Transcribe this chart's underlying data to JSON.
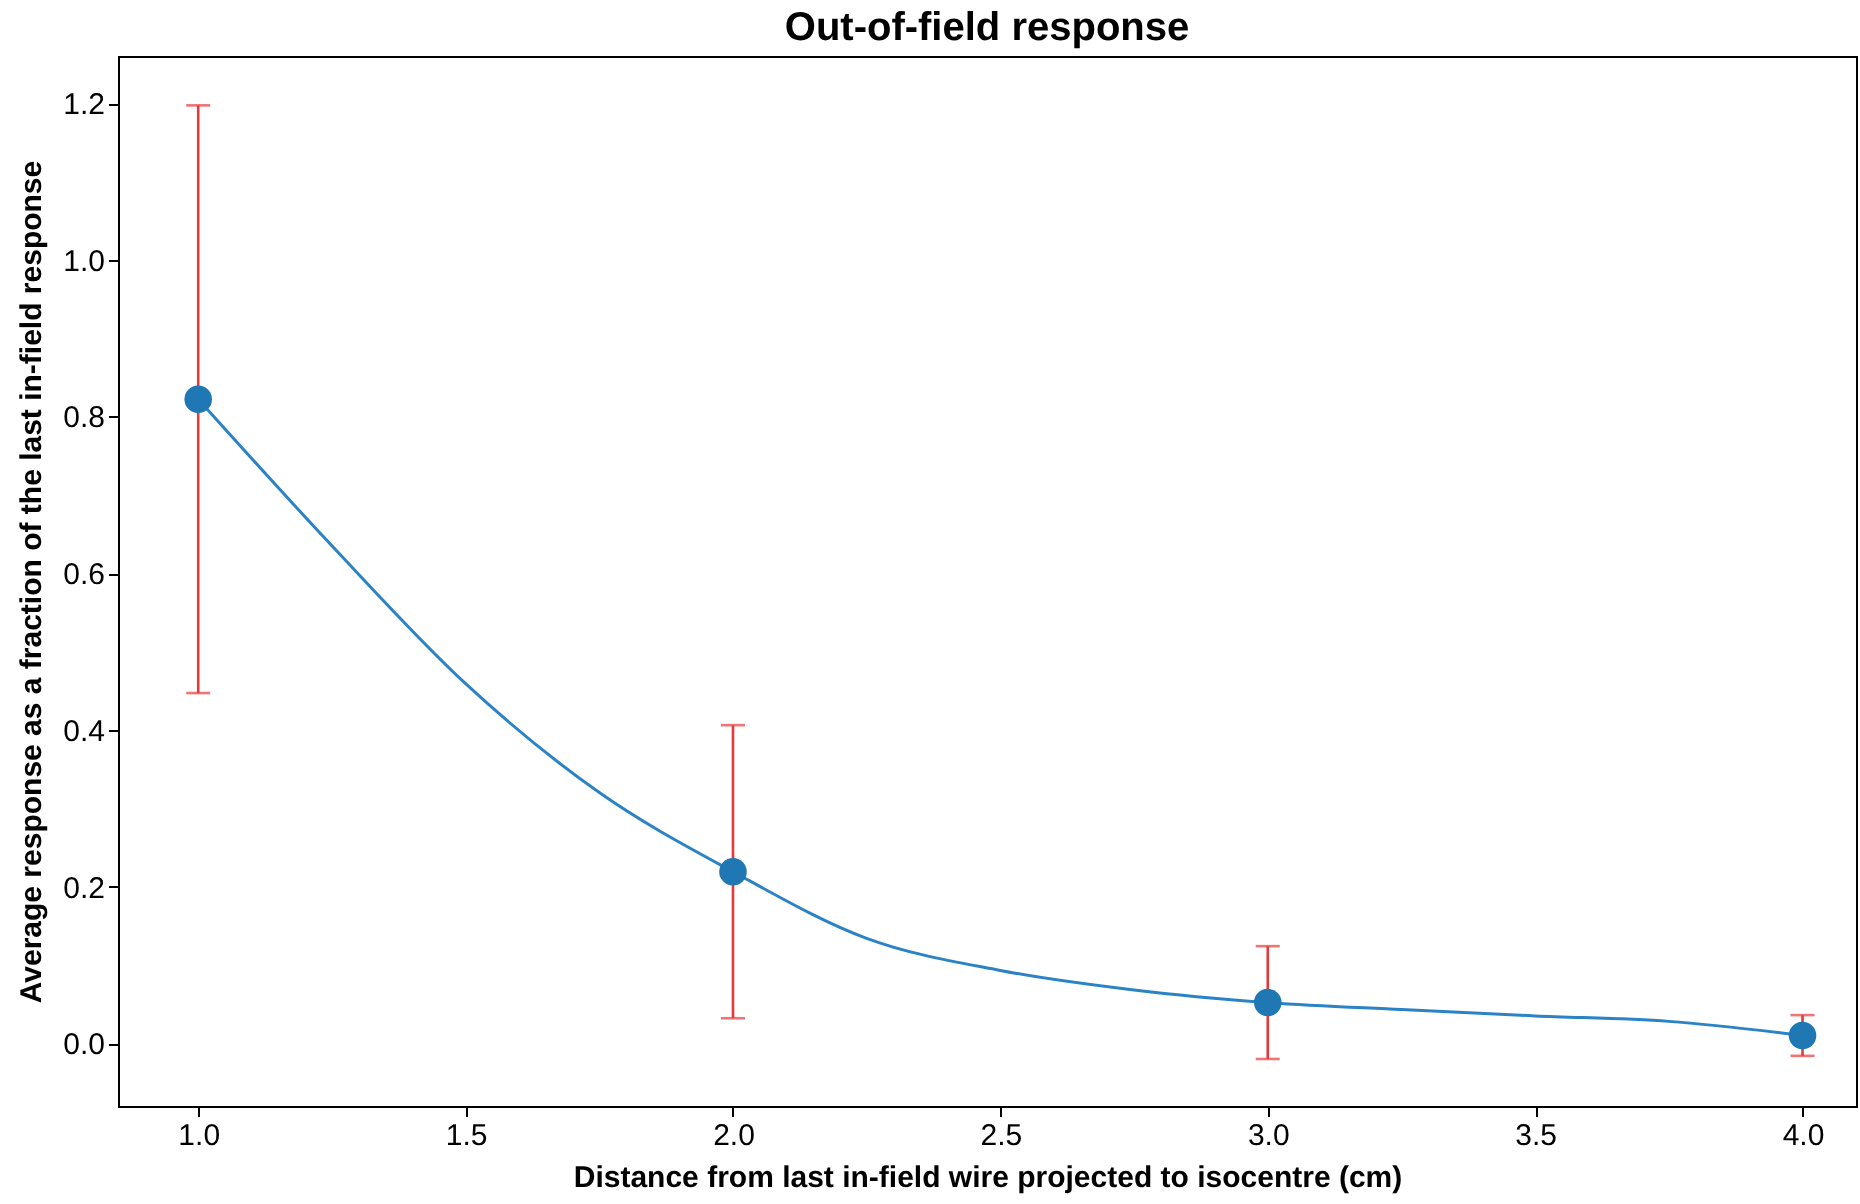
{
  "chart_data": {
    "type": "scatter",
    "title": "Out-of-field response",
    "xlabel": "Distance from last in-field wire projected to isocentre (cm)",
    "ylabel": "Average response as a fraction of the last in-field response",
    "xlim": [
      0.85,
      4.1
    ],
    "xticks": [
      {
        "value": 1,
        "label": "1.0"
      },
      1.5,
      {
        "value": 2,
        "label": "2.0"
      },
      2.5,
      {
        "value": 3,
        "label": "3.0"
      },
      3.5,
      {
        "value": 4,
        "label": "4.0"
      }
    ],
    "ylim": [
      -0.08,
      1.26
    ],
    "yticks": [
      {
        "value": 0,
        "label": "0.0"
      },
      0.2,
      0.4,
      0.6,
      0.8,
      {
        "value": 1,
        "label": "1.0"
      },
      1.2
    ],
    "grid": false,
    "series": [
      {
        "type": "line",
        "color": "#2b83c6",
        "marker": "none",
        "line_style": "solid",
        "x": [
          1,
          1.25,
          1.5,
          1.75,
          2,
          2.25,
          2.5,
          2.75,
          3,
          3.25,
          3.5,
          3.75,
          4
        ],
        "values": [
          0.822,
          0.635,
          0.459,
          0.32,
          0.219,
          0.134,
          0.093,
          0.068,
          0.052,
          0.043,
          0.035,
          0.028,
          0.01
        ]
      },
      {
        "type": "scatter",
        "color": "#1f77b4",
        "marker": "circle",
        "x": [
          1,
          2,
          3,
          4
        ],
        "values": [
          0.822,
          0.219,
          0.052,
          0.01
        ],
        "errors": [
          0.375,
          0.187,
          0.072,
          0.026
        ]
      }
    ]
  }
}
